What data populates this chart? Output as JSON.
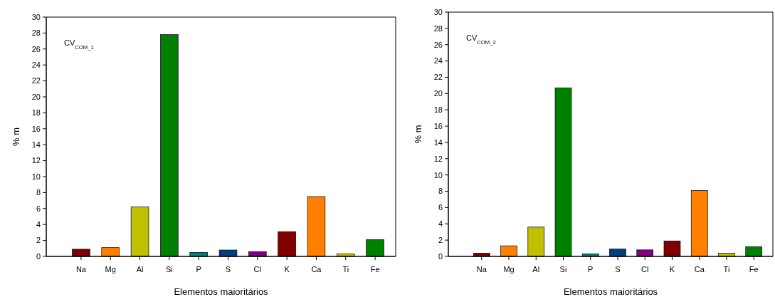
{
  "chart_data": [
    {
      "type": "bar",
      "xlabel": "Elementos maioritários",
      "ylabel": "% m",
      "annotations": [
        "CV$_{COM_1}$"
      ],
      "categories": [
        "Na",
        "Mg",
        "Al",
        "Si",
        "P",
        "S",
        "Cl",
        "K",
        "Ca",
        "Ti",
        "Fe"
      ],
      "values": [
        0.9,
        1.1,
        6.2,
        27.8,
        0.5,
        0.8,
        0.6,
        3.1,
        7.5,
        0.3,
        2.1
      ],
      "colors": [
        "#800000",
        "#ff8000",
        "#c0c000",
        "#008000",
        "#008080",
        "#004080",
        "#800080",
        "#800000",
        "#ff8000",
        "#c0c000",
        "#008000"
      ],
      "ylim": [
        0,
        30
      ],
      "yticks": [
        0,
        2,
        4,
        6,
        8,
        10,
        12,
        14,
        16,
        18,
        20,
        22,
        24,
        26,
        28,
        30
      ]
    },
    {
      "type": "bar",
      "xlabel": "Elementos maioritários",
      "ylabel": "% m",
      "annotations": [
        "CV$_{COM_2}$"
      ],
      "categories": [
        "Na",
        "Mg",
        "Al",
        "Si",
        "P",
        "S",
        "Cl",
        "K",
        "Ca",
        "Ti",
        "Fe"
      ],
      "values": [
        0.4,
        1.3,
        3.6,
        20.7,
        0.3,
        0.9,
        0.8,
        1.9,
        8.1,
        0.4,
        1.2
      ],
      "colors": [
        "#800000",
        "#ff8000",
        "#c0c000",
        "#008000",
        "#008080",
        "#004080",
        "#800080",
        "#800000",
        "#ff8000",
        "#c0c000",
        "#008000"
      ],
      "ylim": [
        0,
        30
      ],
      "yticks": [
        0,
        2,
        4,
        6,
        8,
        10,
        12,
        14,
        16,
        18,
        20,
        22,
        24,
        26,
        28,
        30
      ]
    }
  ]
}
